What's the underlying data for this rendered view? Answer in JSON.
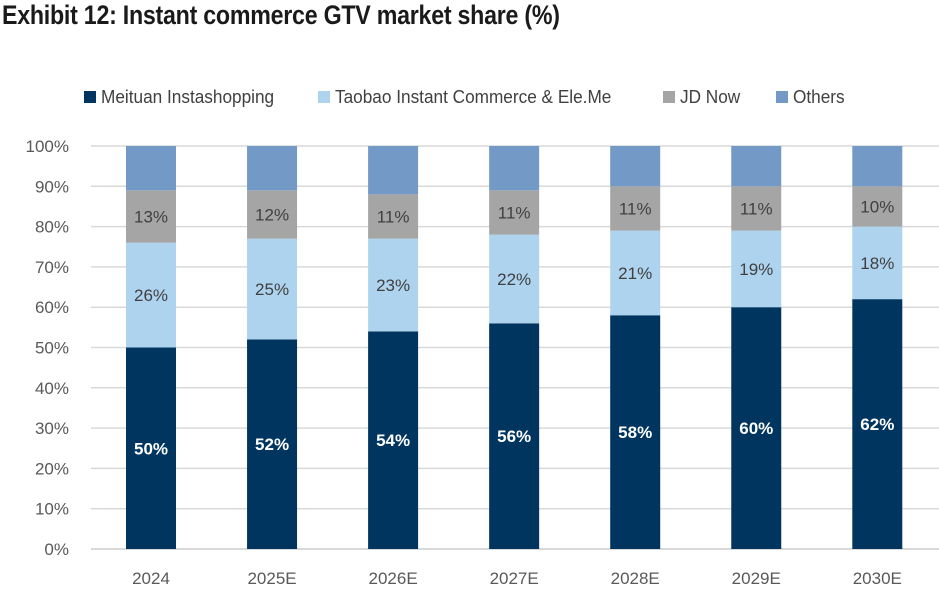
{
  "title": "Exhibit 12: Instant commerce GTV market share (%)",
  "chart_data": {
    "type": "bar",
    "stacked": true,
    "title": "Exhibit 12: Instant commerce GTV market share (%)",
    "xlabel": "",
    "ylabel": "",
    "ylim": [
      0,
      100
    ],
    "y_ticks": [
      "0%",
      "10%",
      "20%",
      "30%",
      "40%",
      "50%",
      "60%",
      "70%",
      "80%",
      "90%",
      "100%"
    ],
    "grid": true,
    "legend_position": "top",
    "categories": [
      "2024",
      "2025E",
      "2026E",
      "2027E",
      "2028E",
      "2029E",
      "2030E"
    ],
    "series": [
      {
        "name": "Meituan Instashopping",
        "color": "#003560",
        "label_color": "#ffffff",
        "values": [
          50,
          52,
          54,
          56,
          58,
          60,
          62
        ],
        "labels": [
          "50%",
          "52%",
          "54%",
          "56%",
          "58%",
          "60%",
          "62%"
        ]
      },
      {
        "name": "Taobao Instant Commerce & Ele.Me",
        "color": "#aed3ef",
        "label_color": "#404040",
        "values": [
          26,
          25,
          23,
          22,
          21,
          19,
          18
        ],
        "labels": [
          "26%",
          "25%",
          "23%",
          "22%",
          "21%",
          "19%",
          "18%"
        ]
      },
      {
        "name": "JD Now",
        "color": "#a5a5a5",
        "label_color": "#404040",
        "values": [
          13,
          12,
          11,
          11,
          11,
          11,
          10
        ],
        "labels": [
          "13%",
          "12%",
          "11%",
          "11%",
          "11%",
          "11%",
          "10%"
        ]
      },
      {
        "name": "Others",
        "color": "#7399c6",
        "label_color": "#404040",
        "values": [
          11,
          11,
          12,
          11,
          10,
          10,
          10
        ],
        "labels": []
      }
    ]
  },
  "colors": {
    "grid": "#d9d9d9",
    "axis_text": "#595959",
    "title": "#1a1a1a"
  }
}
